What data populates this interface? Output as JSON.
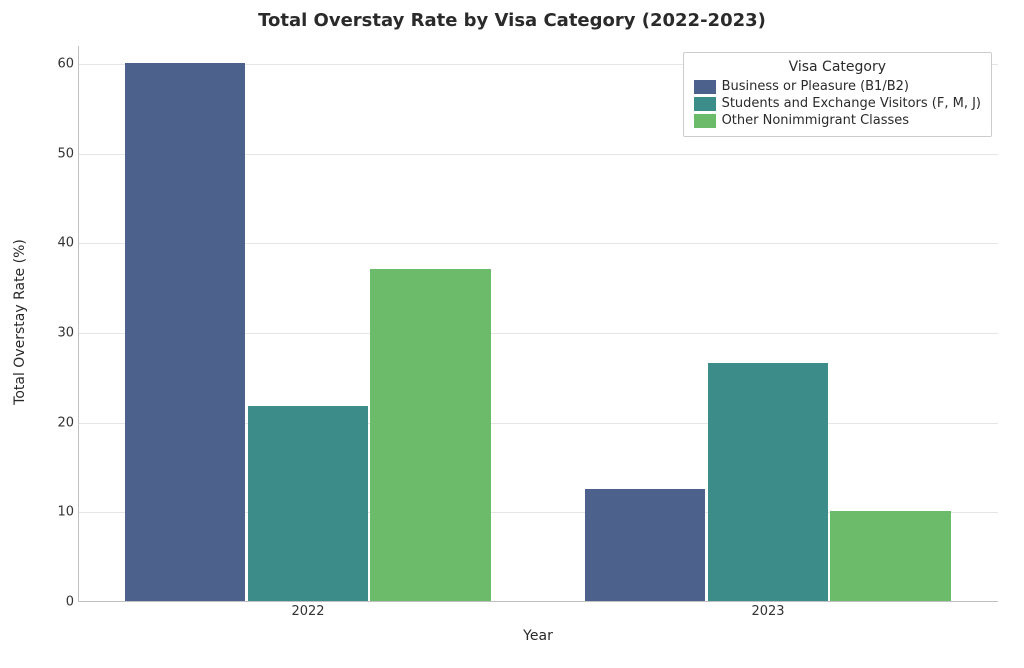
{
  "chart": {
    "type": "bar",
    "title": "Total Overstay Rate by Visa Category (2022-2023)",
    "title_fontsize": 18,
    "title_fontweight": "bold",
    "xlabel": "Year",
    "ylabel": "Total Overstay Rate (%)",
    "label_fontsize": 14,
    "tick_fontsize": 13,
    "background_color": "#ffffff",
    "grid_color": "#e6e6e6",
    "axis_color": "#c0c0c0",
    "ylim": [
      0,
      62
    ],
    "yticks": [
      0,
      10,
      20,
      30,
      40,
      50,
      60
    ],
    "categories": [
      "2022",
      "2023"
    ],
    "series": [
      {
        "name": "Business or Pleasure (B1/B2)",
        "color": "#4c618c",
        "values": [
          60.0,
          12.5
        ]
      },
      {
        "name": "Students and Exchange Visitors (F, M, J)",
        "color": "#3c8d8a",
        "values": [
          21.7,
          26.5
        ]
      },
      {
        "name": "Other Nonimmigrant Classes",
        "color": "#6cbb6a",
        "values": [
          37.0,
          10.0
        ]
      }
    ],
    "bar_group_width": 0.8,
    "legend": {
      "title": "Visa Category",
      "title_fontsize": 14,
      "label_fontsize": 13,
      "position": "upper-right"
    }
  }
}
